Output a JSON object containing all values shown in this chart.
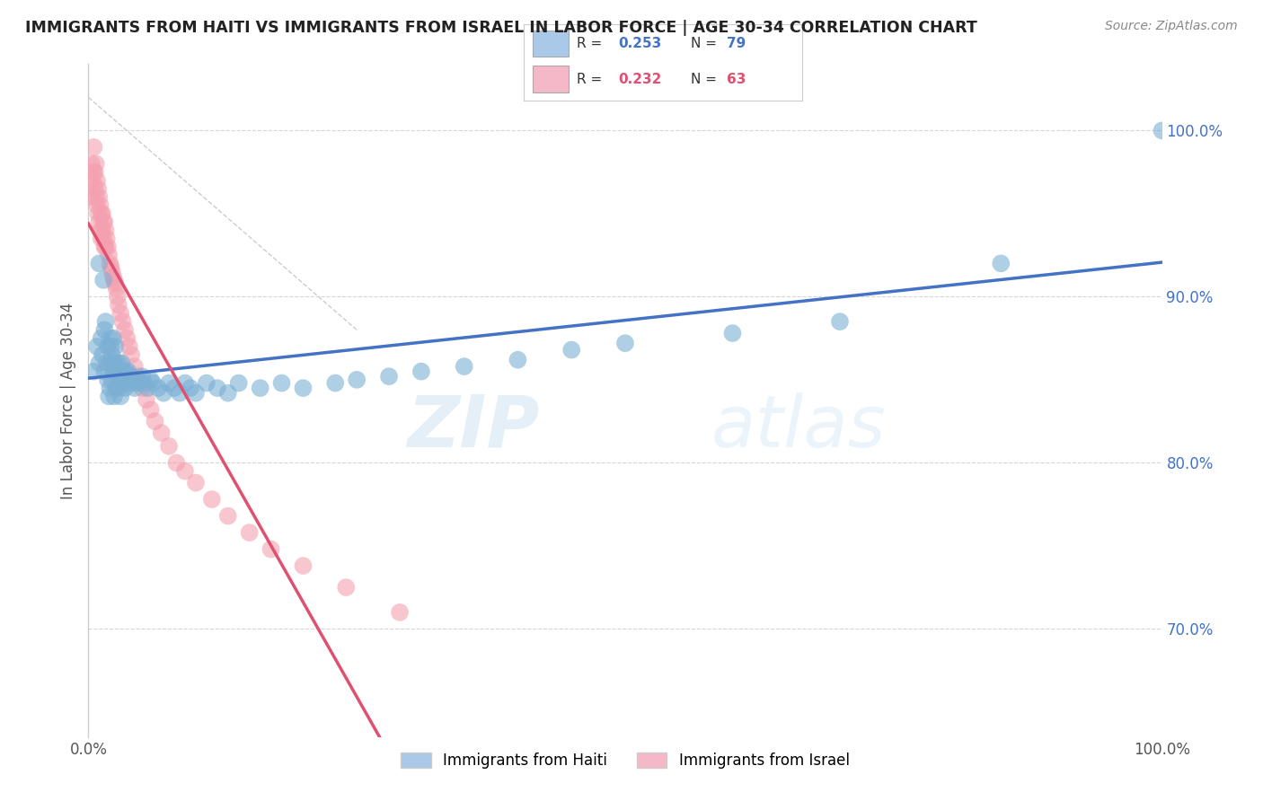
{
  "title": "IMMIGRANTS FROM HAITI VS IMMIGRANTS FROM ISRAEL IN LABOR FORCE | AGE 30-34 CORRELATION CHART",
  "source": "Source: ZipAtlas.com",
  "ylabel": "In Labor Force | Age 30-34",
  "y_tick_labels": [
    "70.0%",
    "80.0%",
    "90.0%",
    "100.0%"
  ],
  "y_tick_values": [
    0.7,
    0.8,
    0.9,
    1.0
  ],
  "xlim": [
    0.0,
    1.0
  ],
  "ylim": [
    0.635,
    1.04
  ],
  "haiti_R": 0.253,
  "haiti_N": 79,
  "israel_R": 0.232,
  "israel_N": 63,
  "haiti_color": "#7bafd4",
  "israel_color": "#f4a0b0",
  "haiti_line_color": "#4472c4",
  "israel_line_color": "#e05070",
  "legend_haiti_color": "#aac8e8",
  "legend_israel_color": "#f4b8c8",
  "watermark_zip": "ZIP",
  "watermark_atlas": "atlas",
  "haiti_x": [
    0.005,
    0.008,
    0.01,
    0.01,
    0.012,
    0.013,
    0.014,
    0.015,
    0.015,
    0.016,
    0.017,
    0.018,
    0.018,
    0.019,
    0.02,
    0.02,
    0.02,
    0.021,
    0.022,
    0.022,
    0.023,
    0.023,
    0.024,
    0.024,
    0.025,
    0.025,
    0.026,
    0.026,
    0.027,
    0.028,
    0.028,
    0.029,
    0.03,
    0.03,
    0.031,
    0.032,
    0.033,
    0.034,
    0.035,
    0.036,
    0.037,
    0.038,
    0.04,
    0.042,
    0.043,
    0.045,
    0.047,
    0.05,
    0.052,
    0.055,
    0.058,
    0.06,
    0.065,
    0.07,
    0.075,
    0.08,
    0.085,
    0.09,
    0.095,
    0.1,
    0.11,
    0.12,
    0.13,
    0.14,
    0.16,
    0.18,
    0.2,
    0.23,
    0.25,
    0.28,
    0.31,
    0.35,
    0.4,
    0.45,
    0.5,
    0.6,
    0.7,
    0.85,
    1.0
  ],
  "haiti_y": [
    0.855,
    0.87,
    0.92,
    0.86,
    0.875,
    0.865,
    0.91,
    0.88,
    0.855,
    0.885,
    0.86,
    0.87,
    0.85,
    0.84,
    0.875,
    0.86,
    0.845,
    0.87,
    0.865,
    0.85,
    0.875,
    0.855,
    0.86,
    0.84,
    0.87,
    0.855,
    0.86,
    0.845,
    0.855,
    0.86,
    0.845,
    0.85,
    0.855,
    0.84,
    0.86,
    0.85,
    0.855,
    0.845,
    0.855,
    0.85,
    0.855,
    0.848,
    0.852,
    0.848,
    0.845,
    0.85,
    0.848,
    0.852,
    0.848,
    0.845,
    0.85,
    0.848,
    0.845,
    0.842,
    0.848,
    0.845,
    0.842,
    0.848,
    0.845,
    0.842,
    0.848,
    0.845,
    0.842,
    0.848,
    0.845,
    0.848,
    0.845,
    0.848,
    0.85,
    0.852,
    0.855,
    0.858,
    0.862,
    0.868,
    0.872,
    0.878,
    0.885,
    0.92,
    1.0
  ],
  "israel_x": [
    0.002,
    0.003,
    0.004,
    0.005,
    0.005,
    0.006,
    0.006,
    0.007,
    0.007,
    0.008,
    0.008,
    0.009,
    0.009,
    0.01,
    0.01,
    0.011,
    0.011,
    0.012,
    0.012,
    0.013,
    0.013,
    0.014,
    0.014,
    0.015,
    0.015,
    0.016,
    0.016,
    0.017,
    0.018,
    0.019,
    0.02,
    0.021,
    0.022,
    0.023,
    0.024,
    0.025,
    0.026,
    0.027,
    0.028,
    0.03,
    0.032,
    0.034,
    0.036,
    0.038,
    0.04,
    0.043,
    0.046,
    0.05,
    0.054,
    0.058,
    0.062,
    0.068,
    0.075,
    0.082,
    0.09,
    0.1,
    0.115,
    0.13,
    0.15,
    0.17,
    0.2,
    0.24,
    0.29
  ],
  "israel_y": [
    0.96,
    0.98,
    0.97,
    0.99,
    0.975,
    0.965,
    0.975,
    0.98,
    0.96,
    0.97,
    0.955,
    0.965,
    0.95,
    0.96,
    0.945,
    0.955,
    0.94,
    0.95,
    0.935,
    0.95,
    0.94,
    0.945,
    0.935,
    0.945,
    0.93,
    0.94,
    0.93,
    0.935,
    0.93,
    0.925,
    0.92,
    0.918,
    0.915,
    0.912,
    0.91,
    0.908,
    0.905,
    0.9,
    0.895,
    0.89,
    0.885,
    0.88,
    0.875,
    0.87,
    0.865,
    0.858,
    0.852,
    0.845,
    0.838,
    0.832,
    0.825,
    0.818,
    0.81,
    0.8,
    0.795,
    0.788,
    0.778,
    0.768,
    0.758,
    0.748,
    0.738,
    0.725,
    0.71
  ]
}
